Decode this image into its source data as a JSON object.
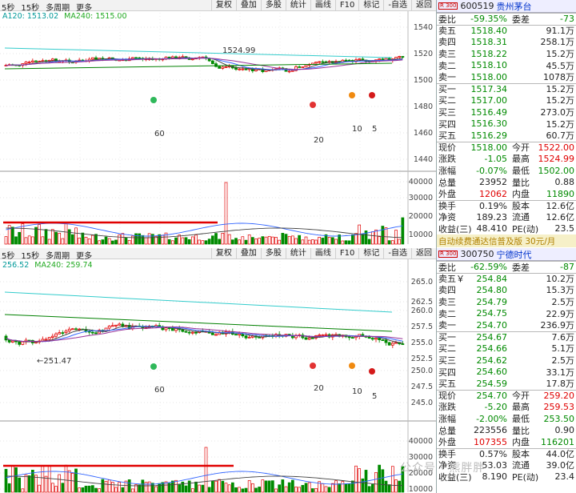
{
  "top": {
    "toolbar": {
      "left": [
        "5秒",
        "15秒",
        "多周期",
        "更多"
      ],
      "right": [
        "复权",
        "叠加",
        "多股",
        "统计",
        "画线",
        "F10",
        "标记",
        "-自选",
        "返回"
      ]
    },
    "ma": {
      "a": "A120: 1513.02",
      "b": "MA240: 1515.00"
    },
    "price_axis": [
      "1540",
      "1520",
      "1500",
      "1480",
      "1460",
      "1440"
    ],
    "vol_axis": [
      "40000",
      "30000",
      "20000",
      "10000"
    ],
    "high_label": "1524.99",
    "below_labels": [
      "60",
      "20",
      "10",
      "5"
    ],
    "quote": {
      "code": "600519",
      "name": "贵州茅台",
      "badge": "R 300",
      "ratio": {
        "l": "委比",
        "v": "-59.35%",
        "l2": "委差",
        "v2": "-73"
      },
      "sells": [
        {
          "l": "卖五",
          "p": "1518.40",
          "q": "91.1万"
        },
        {
          "l": "卖四",
          "p": "1518.31",
          "q": "258.1万"
        },
        {
          "l": "卖三",
          "p": "1518.22",
          "q": "15.2万"
        },
        {
          "l": "卖二",
          "p": "1518.10",
          "q": "45.5万"
        },
        {
          "l": "卖一",
          "p": "1518.00",
          "q": "1078万"
        }
      ],
      "buys": [
        {
          "l": "买一",
          "p": "1517.34",
          "q": "15.2万"
        },
        {
          "l": "买二",
          "p": "1517.00",
          "q": "15.2万"
        },
        {
          "l": "买三",
          "p": "1516.49",
          "q": "273.0万"
        },
        {
          "l": "买四",
          "p": "1516.30",
          "q": "15.2万"
        },
        {
          "l": "买五",
          "p": "1516.29",
          "q": "60.7万"
        }
      ],
      "stats": [
        {
          "l": "现价",
          "v": "1518.00",
          "l2": "今开",
          "v2": "1522.00"
        },
        {
          "l": "涨跌",
          "v": "-1.05",
          "l2": "最高",
          "v2": "1524.99"
        },
        {
          "l": "涨幅",
          "v": "-0.07%",
          "l2": "最低",
          "v2": "1502.00"
        },
        {
          "l": "总量",
          "v": "23952",
          "l2": "量比",
          "v2": "0.88"
        },
        {
          "l": "外盘",
          "v": "12062",
          "l2": "内盘",
          "v2": "11890"
        }
      ],
      "stats2": [
        {
          "l": "换手",
          "v": "0.19%",
          "l2": "股本",
          "v2": "12.6亿"
        },
        {
          "l": "净资",
          "v": "189.23",
          "l2": "流通",
          "v2": "12.6亿"
        },
        {
          "l": "收益(三)",
          "v": "48.410",
          "l2": "PE(动)",
          "v2": "23.5"
        }
      ],
      "ad": "自动续费通达信普及版  30元/月"
    }
  },
  "bottom": {
    "toolbar": {
      "left": [
        "5秒",
        "15秒",
        "多周期",
        "更多"
      ],
      "right": [
        "复权",
        "叠加",
        "多股",
        "统计",
        "画线",
        "F10",
        "标记",
        "-自选",
        "返回"
      ]
    },
    "ma": {
      "a": "256.52",
      "b": "MA240: 259.74"
    },
    "price_axis": [
      "265.0",
      "262.5",
      "260.0",
      "257.5",
      "255.0",
      "252.5",
      "250.0",
      "247.5",
      "245.0"
    ],
    "vol_axis": [
      "40000",
      "30000",
      "20000",
      "10000"
    ],
    "low_label": "251.47",
    "below_labels": [
      "60",
      "20",
      "10",
      "5"
    ],
    "quote": {
      "code": "300750",
      "name": "宁德时代",
      "badge": "R 300",
      "ratio": {
        "l": "委比",
        "v": "-62.59%",
        "l2": "委差",
        "v2": "-87"
      },
      "sells": [
        {
          "l": "卖五￥",
          "p": "254.84",
          "q": "10.2万"
        },
        {
          "l": "卖四",
          "p": "254.80",
          "q": "15.3万"
        },
        {
          "l": "卖三",
          "p": "254.79",
          "q": "2.5万"
        },
        {
          "l": "卖二",
          "p": "254.75",
          "q": "22.9万"
        },
        {
          "l": "卖一",
          "p": "254.70",
          "q": "236.9万"
        }
      ],
      "buys": [
        {
          "l": "买一",
          "p": "254.67",
          "q": "7.6万"
        },
        {
          "l": "买二",
          "p": "254.66",
          "q": "5.1万"
        },
        {
          "l": "买三",
          "p": "254.62",
          "q": "2.5万"
        },
        {
          "l": "买四",
          "p": "254.60",
          "q": "33.1万"
        },
        {
          "l": "买五",
          "p": "254.59",
          "q": "17.8万"
        }
      ],
      "stats": [
        {
          "l": "现价",
          "v": "254.70",
          "l2": "今开",
          "v2": "259.20"
        },
        {
          "l": "涨跌",
          "v": "-5.20",
          "l2": "最高",
          "v2": "259.53"
        },
        {
          "l": "涨幅",
          "v": "-2.00%",
          "l2": "最低",
          "v2": "253.50"
        },
        {
          "l": "总量",
          "v": "223556",
          "l2": "量比",
          "v2": "0.90"
        },
        {
          "l": "外盘",
          "v": "107355",
          "l2": "内盘",
          "v2": "116201"
        }
      ],
      "stats2": [
        {
          "l": "换手",
          "v": "0.57%",
          "l2": "股本",
          "v2": "44.0亿"
        },
        {
          "l": "净资",
          "v": "53.03",
          "l2": "流通",
          "v2": "39.0亿"
        },
        {
          "l": "收益(三)",
          "v": "8.190",
          "l2": "PE(动)",
          "v2": "23.4"
        }
      ]
    }
  },
  "watermark": "公众号 · 熊胖胖",
  "colors": {
    "up": "#e00000",
    "down": "#008a00",
    "ma_cyan": "#33cccc",
    "ma_green": "#008000",
    "ma_blue": "#3366ff",
    "ma_purple": "#993399",
    "ma_dark": "#444444",
    "support": "#e00000"
  }
}
